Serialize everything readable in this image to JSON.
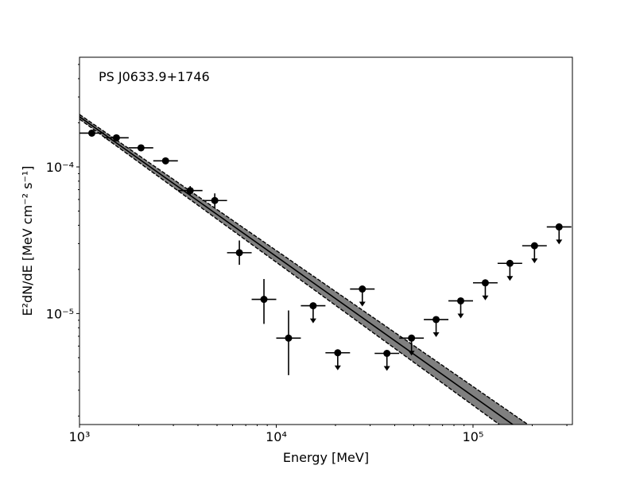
{
  "chart_data": {
    "type": "scatter",
    "title": "PS J0633.9+1746",
    "xlabel": "Energy [MeV]",
    "ylabel": "E²dN/dE [MeV cm⁻² s⁻¹]",
    "x_scale": "log",
    "y_scale": "log",
    "xlim": [
      1000,
      320000
    ],
    "ylim": [
      1.75e-06,
      0.00056
    ],
    "x_tick_labels": [
      {
        "value": 1000,
        "label": "10³"
      },
      {
        "value": 10000,
        "label": "10⁴"
      },
      {
        "value": 100000,
        "label": "10⁵"
      }
    ],
    "y_tick_labels": [
      {
        "value": 1e-05,
        "label": "10⁻⁵"
      },
      {
        "value": 0.0001,
        "label": "10⁻⁴"
      }
    ],
    "model": {
      "type": "power-law",
      "band_color": "#808080",
      "line": {
        "x": [
          1000,
          320000
        ],
        "y": [
          0.00022,
          9e-07
        ]
      },
      "band_lower": {
        "x": [
          1000,
          320000
        ],
        "y": [
          0.000212,
          7.6e-07
        ]
      },
      "band_upper": {
        "x": [
          1000,
          320000
        ],
        "y": [
          0.000228,
          1.08e-06
        ]
      }
    },
    "points": [
      {
        "x": 1155,
        "y": 0.00017,
        "xlo": 1000,
        "xhi": 1334,
        "ylo": 0.000166,
        "yhi": 0.000174,
        "upper_limit": false
      },
      {
        "x": 1540,
        "y": 0.000158,
        "xlo": 1334,
        "xhi": 1778,
        "ylo": 0.000153,
        "yhi": 0.000163,
        "upper_limit": false
      },
      {
        "x": 2054,
        "y": 0.000135,
        "xlo": 1778,
        "xhi": 2371,
        "ylo": 0.000131,
        "yhi": 0.000139,
        "upper_limit": false
      },
      {
        "x": 2738,
        "y": 0.00011,
        "xlo": 2371,
        "xhi": 3162,
        "ylo": 0.000105,
        "yhi": 0.000115,
        "upper_limit": false
      },
      {
        "x": 3652,
        "y": 6.9e-05,
        "xlo": 3162,
        "xhi": 4217,
        "ylo": 6.4e-05,
        "yhi": 7.4e-05,
        "upper_limit": false
      },
      {
        "x": 4870,
        "y": 5.9e-05,
        "xlo": 4217,
        "xhi": 5623,
        "ylo": 5.3e-05,
        "yhi": 6.6e-05,
        "upper_limit": false
      },
      {
        "x": 6494,
        "y": 2.6e-05,
        "xlo": 5623,
        "xhi": 7499,
        "ylo": 2.15e-05,
        "yhi": 3.15e-05,
        "upper_limit": false
      },
      {
        "x": 8660,
        "y": 1.25e-05,
        "xlo": 7499,
        "xhi": 10000,
        "ylo": 8.5e-06,
        "yhi": 1.72e-05,
        "upper_limit": false
      },
      {
        "x": 11548,
        "y": 6.8e-06,
        "xlo": 10000,
        "xhi": 13335,
        "ylo": 3.8e-06,
        "yhi": 1.05e-05,
        "upper_limit": false
      },
      {
        "x": 15399,
        "y": 1.13e-05,
        "xlo": 13335,
        "xhi": 17783,
        "upper_limit": true
      },
      {
        "x": 20535,
        "y": 5.4e-06,
        "xlo": 17783,
        "xhi": 23714,
        "upper_limit": true
      },
      {
        "x": 27384,
        "y": 1.47e-05,
        "xlo": 23714,
        "xhi": 31623,
        "upper_limit": true
      },
      {
        "x": 36517,
        "y": 5.35e-06,
        "xlo": 31623,
        "xhi": 42170,
        "upper_limit": true
      },
      {
        "x": 48697,
        "y": 6.8e-06,
        "xlo": 42170,
        "xhi": 56234,
        "upper_limit": true
      },
      {
        "x": 64938,
        "y": 9.1e-06,
        "xlo": 56234,
        "xhi": 74989,
        "upper_limit": true
      },
      {
        "x": 86596,
        "y": 1.22e-05,
        "xlo": 74989,
        "xhi": 100000,
        "upper_limit": true
      },
      {
        "x": 115478,
        "y": 1.62e-05,
        "xlo": 100000,
        "xhi": 133352,
        "upper_limit": true
      },
      {
        "x": 153993,
        "y": 2.2e-05,
        "xlo": 133352,
        "xhi": 177828,
        "upper_limit": true
      },
      {
        "x": 205353,
        "y": 2.9e-05,
        "xlo": 177828,
        "xhi": 237137,
        "upper_limit": true
      },
      {
        "x": 273842,
        "y": 3.9e-05,
        "xlo": 237137,
        "xhi": 316228,
        "upper_limit": true
      }
    ]
  }
}
